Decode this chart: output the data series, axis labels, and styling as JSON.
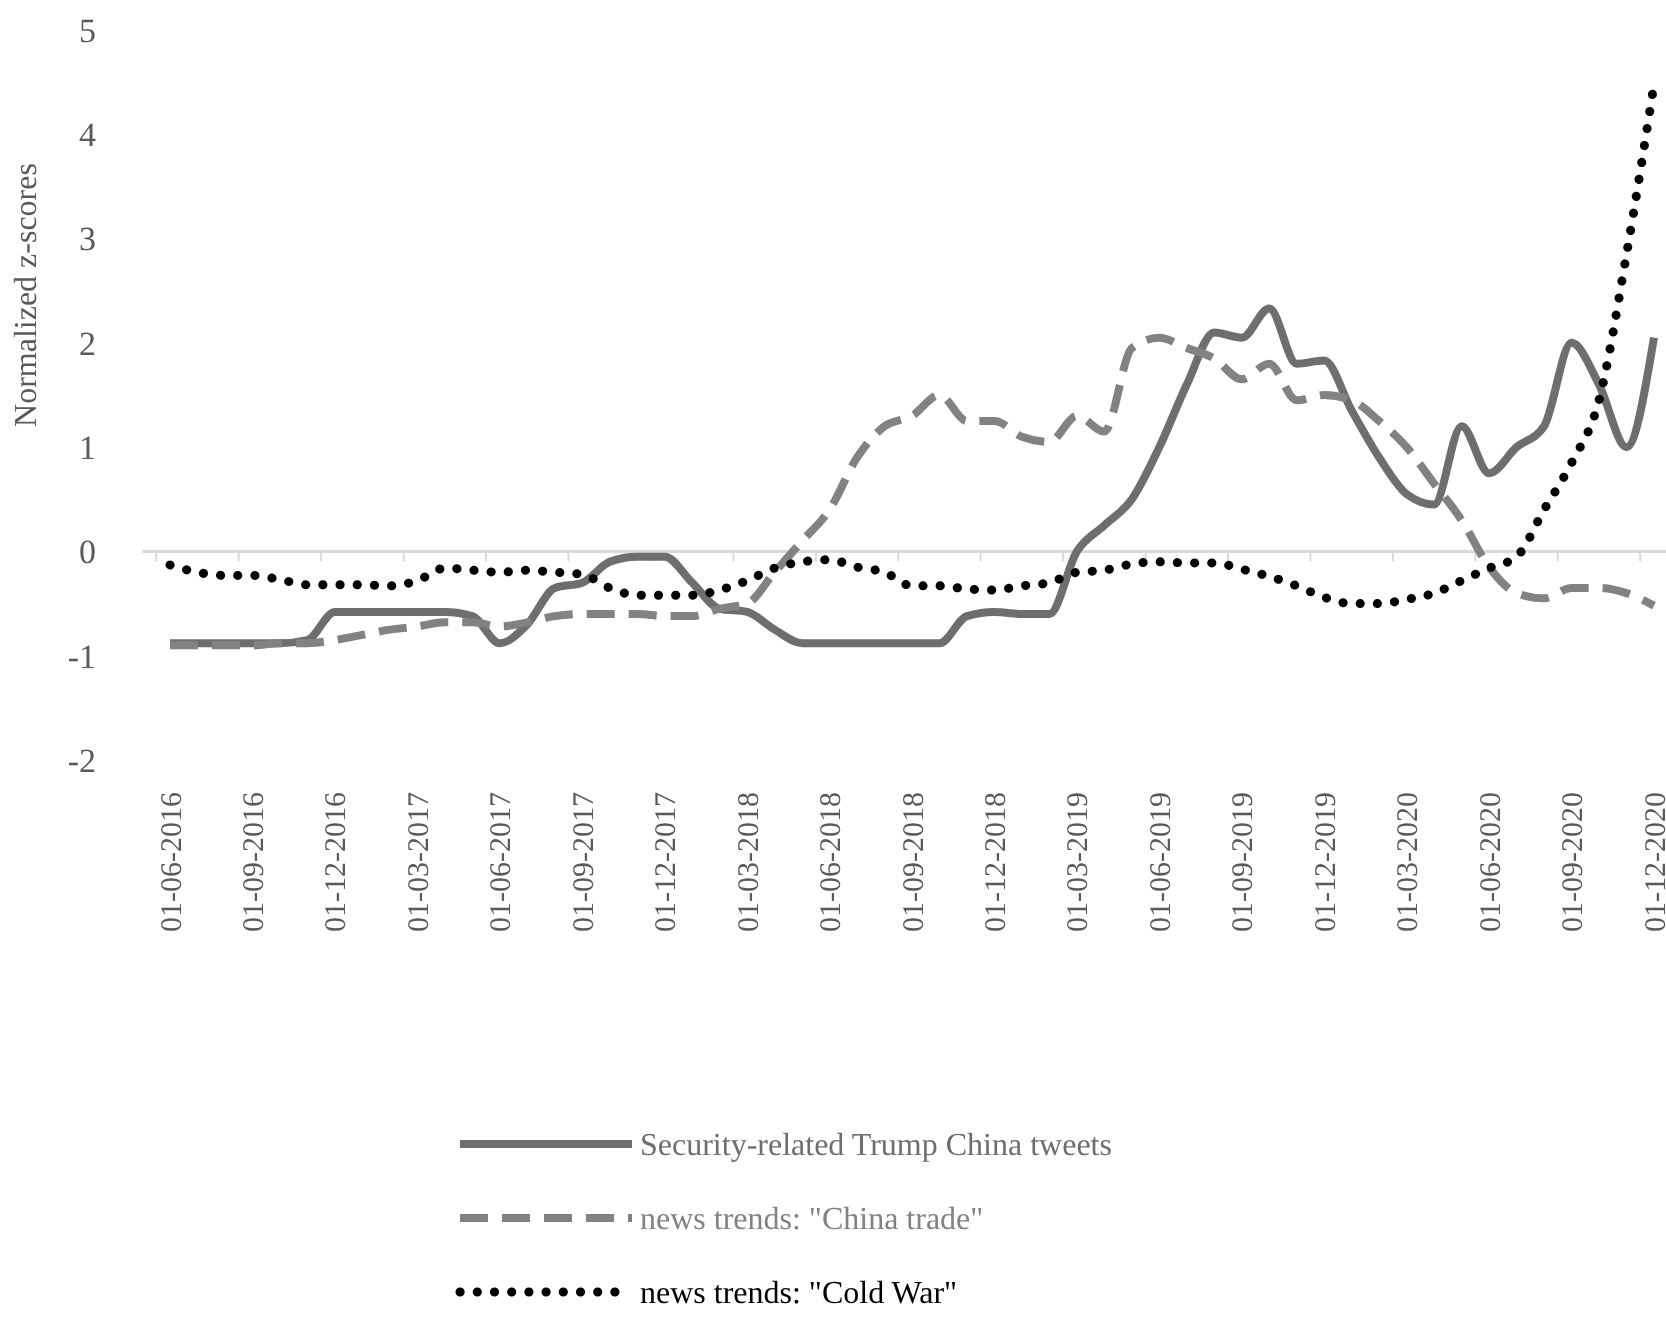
{
  "chart_data": {
    "type": "line",
    "ylabel": "Normalized z-scores",
    "ylim": [
      -2,
      5
    ],
    "yticks": [
      -2,
      -1,
      0,
      1,
      2,
      3,
      4,
      5
    ],
    "legend": "bottom",
    "categories": [
      "01-06-2016",
      null,
      null,
      "01-09-2016",
      null,
      null,
      "01-12-2016",
      null,
      null,
      "01-03-2017",
      null,
      null,
      "01-06-2017",
      null,
      null,
      "01-09-2017",
      null,
      null,
      "01-12-2017",
      null,
      null,
      "01-03-2018",
      null,
      null,
      "01-06-2018",
      null,
      null,
      "01-09-2018",
      null,
      null,
      "01-12-2018",
      null,
      null,
      "01-03-2019",
      null,
      null,
      "01-06-2019",
      null,
      null,
      "01-09-2019",
      null,
      null,
      "01-12-2019",
      null,
      null,
      "01-03-2020",
      null,
      null,
      "01-06-2020",
      null,
      null,
      "01-09-2020",
      null,
      null,
      "01-12-2020"
    ],
    "series": [
      {
        "name": "Security-related Trump China tweets",
        "color": "#6e6e6e",
        "line_style": "solid",
        "values": [
          -0.88,
          -0.88,
          -0.88,
          -0.88,
          -0.88,
          -0.85,
          -0.58,
          -0.58,
          -0.58,
          -0.58,
          -0.58,
          -0.62,
          -0.88,
          -0.7,
          -0.35,
          -0.3,
          -0.1,
          -0.05,
          -0.05,
          -0.3,
          -0.55,
          -0.58,
          -0.75,
          -0.88,
          -0.88,
          -0.88,
          -0.88,
          -0.88,
          -0.88,
          -0.62,
          -0.58,
          -0.6,
          -0.6,
          0.0,
          0.25,
          0.5,
          1.0,
          1.6,
          2.1,
          2.05,
          2.33,
          1.8,
          1.83,
          1.35,
          0.9,
          0.55,
          0.45,
          1.2,
          0.75,
          1.0,
          1.2,
          2.0,
          1.6,
          1.0,
          2.05
        ]
      },
      {
        "name": "news trends: \"China trade\"",
        "color": "#828282",
        "line_style": "dashed",
        "values": [
          -0.9,
          -0.9,
          -0.9,
          -0.9,
          -0.88,
          -0.88,
          -0.85,
          -0.8,
          -0.75,
          -0.72,
          -0.68,
          -0.68,
          -0.72,
          -0.68,
          -0.62,
          -0.6,
          -0.6,
          -0.6,
          -0.62,
          -0.62,
          -0.55,
          -0.5,
          -0.2,
          0.1,
          0.4,
          0.9,
          1.2,
          1.3,
          1.5,
          1.25,
          1.25,
          1.1,
          1.05,
          1.3,
          1.15,
          1.95,
          2.05,
          1.95,
          1.85,
          1.65,
          1.8,
          1.45,
          1.5,
          1.45,
          1.25,
          1.0,
          0.65,
          0.3,
          -0.15,
          -0.4,
          -0.45,
          -0.35,
          -0.35,
          -0.4,
          -0.52
        ]
      },
      {
        "name": "news trends: \"Cold War\"",
        "color": "#000000",
        "line_style": "dotted",
        "values": [
          -0.13,
          -0.2,
          -0.23,
          -0.23,
          -0.27,
          -0.32,
          -0.32,
          -0.32,
          -0.33,
          -0.28,
          -0.16,
          -0.18,
          -0.2,
          -0.18,
          -0.2,
          -0.22,
          -0.35,
          -0.42,
          -0.42,
          -0.42,
          -0.37,
          -0.28,
          -0.16,
          -0.1,
          -0.08,
          -0.15,
          -0.2,
          -0.33,
          -0.33,
          -0.36,
          -0.37,
          -0.33,
          -0.3,
          -0.2,
          -0.18,
          -0.12,
          -0.1,
          -0.11,
          -0.11,
          -0.17,
          -0.24,
          -0.33,
          -0.44,
          -0.5,
          -0.5,
          -0.46,
          -0.4,
          -0.28,
          -0.16,
          -0.05,
          0.4,
          0.85,
          1.45,
          2.85,
          4.48
        ]
      }
    ]
  }
}
